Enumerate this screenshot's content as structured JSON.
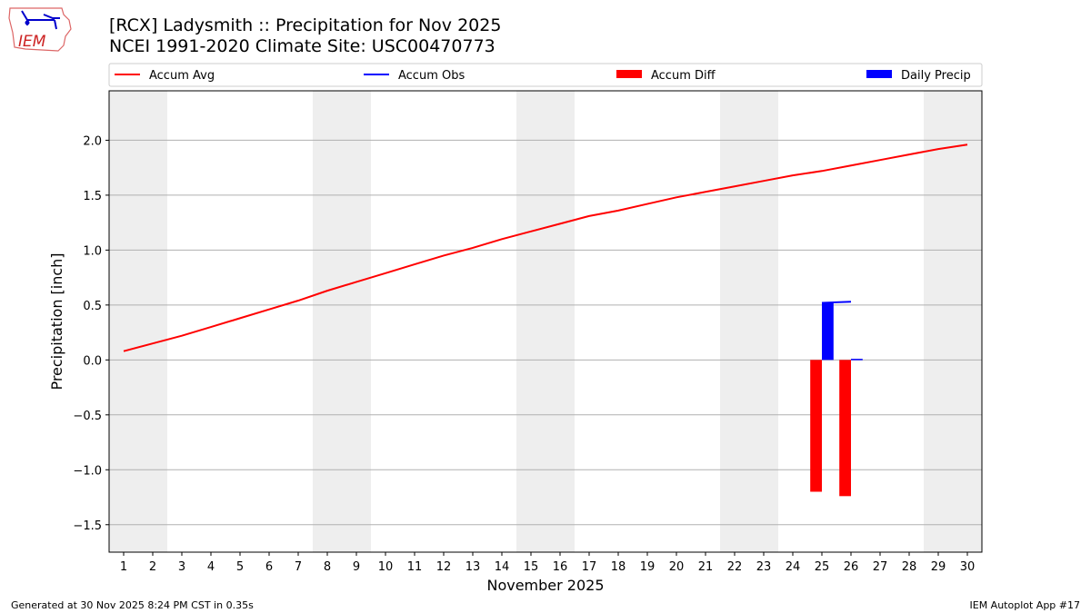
{
  "header": {
    "title": "[RCX] Ladysmith :: Precipitation for Nov 2025",
    "subtitle": "NCEI 1991-2020 Climate Site: USC00470773",
    "logo_text": "IEM"
  },
  "footer": {
    "generated": "Generated at 30 Nov 2025 8:24 PM CST in 0.35s",
    "app": "IEM Autoplot App #17"
  },
  "chart_data": {
    "type": "line",
    "xlabel": "November 2025",
    "ylabel": "Precipitation [inch]",
    "xlim": [
      0.5,
      30.5
    ],
    "ylim": [
      -1.75,
      2.45
    ],
    "grid": "horizontal",
    "legend_placement": "top",
    "x_ticks": [
      1,
      2,
      3,
      4,
      5,
      6,
      7,
      8,
      9,
      10,
      11,
      12,
      13,
      14,
      15,
      16,
      17,
      18,
      19,
      20,
      21,
      22,
      23,
      24,
      25,
      26,
      27,
      28,
      29,
      30
    ],
    "y_ticks": [
      -1.5,
      -1.0,
      -0.5,
      0.0,
      0.5,
      1.0,
      1.5,
      2.0
    ],
    "y_tick_labels": [
      "−1.5",
      "−1.0",
      "−0.5",
      "0.0",
      "0.5",
      "1.0",
      "1.5",
      "2.0"
    ],
    "weekend_shading": [
      [
        0.5,
        2.5
      ],
      [
        7.5,
        9.5
      ],
      [
        14.5,
        16.5
      ],
      [
        21.5,
        23.5
      ],
      [
        28.5,
        30.5
      ]
    ],
    "series": [
      {
        "name": "Accum Avg",
        "kind": "line",
        "color": "#ff0000",
        "x": [
          1,
          2,
          3,
          4,
          5,
          6,
          7,
          8,
          9,
          10,
          11,
          12,
          13,
          14,
          15,
          16,
          17,
          18,
          19,
          20,
          21,
          22,
          23,
          24,
          25,
          26,
          27,
          28,
          29,
          30
        ],
        "values": [
          0.08,
          0.15,
          0.22,
          0.3,
          0.38,
          0.46,
          0.54,
          0.63,
          0.71,
          0.79,
          0.87,
          0.95,
          1.02,
          1.1,
          1.17,
          1.24,
          1.31,
          1.36,
          1.42,
          1.48,
          1.53,
          1.58,
          1.63,
          1.68,
          1.72,
          1.77,
          1.82,
          1.87,
          1.92,
          1.96
        ]
      },
      {
        "name": "Accum Obs",
        "kind": "line",
        "color": "#0000ff",
        "x": [
          25,
          26
        ],
        "values": [
          0.52,
          0.53
        ]
      },
      {
        "name": "Accum Diff",
        "kind": "bar",
        "color": "#ff0000",
        "x": [
          25,
          26
        ],
        "values": [
          -1.2,
          -1.24
        ]
      },
      {
        "name": "Daily Precip",
        "kind": "bar",
        "color": "#0000ff",
        "x": [
          25,
          26
        ],
        "values": [
          0.52,
          0.01
        ]
      }
    ]
  }
}
